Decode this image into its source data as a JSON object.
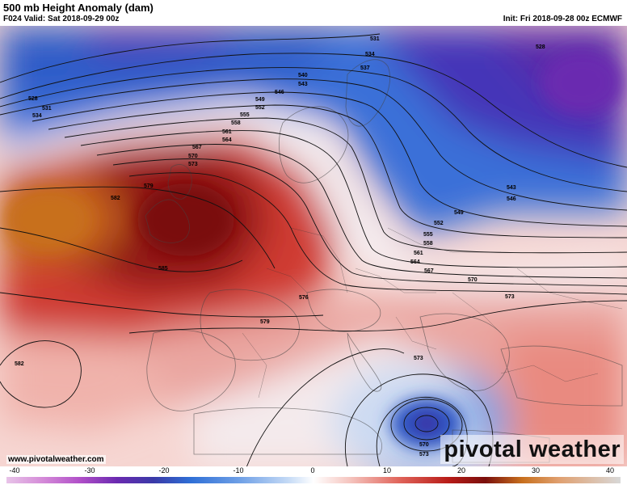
{
  "header": {
    "title": "500 mb Height Anomaly (dam)",
    "valid": "F024 Valid: Sat 2018-09-29 00z",
    "init": "Init: Fri 2018-09-28 00z ECMWF"
  },
  "footer": {
    "url": "www.pivotalweather.com",
    "brand": "pivotal weather"
  },
  "colorbar": {
    "ticks": [
      "-40",
      "-30",
      "-20",
      "-10",
      "0",
      "10",
      "20",
      "30",
      "40"
    ]
  },
  "contour_labels": [
    "528",
    "531",
    "534",
    "537",
    "540",
    "543",
    "546",
    "549",
    "552",
    "555",
    "558",
    "561",
    "564",
    "567",
    "570",
    "573",
    "576",
    "579",
    "582",
    "585"
  ],
  "colors": {
    "strong_negative": "#5a2fa8",
    "negative": "#2f6fd6",
    "weak_negative": "#a9c6ee",
    "neutral": "#ffffff",
    "weak_positive": "#f3b7b0",
    "positive": "#d8403a",
    "strong_positive": "#8e1410",
    "extreme_positive": "#c86a1c"
  }
}
